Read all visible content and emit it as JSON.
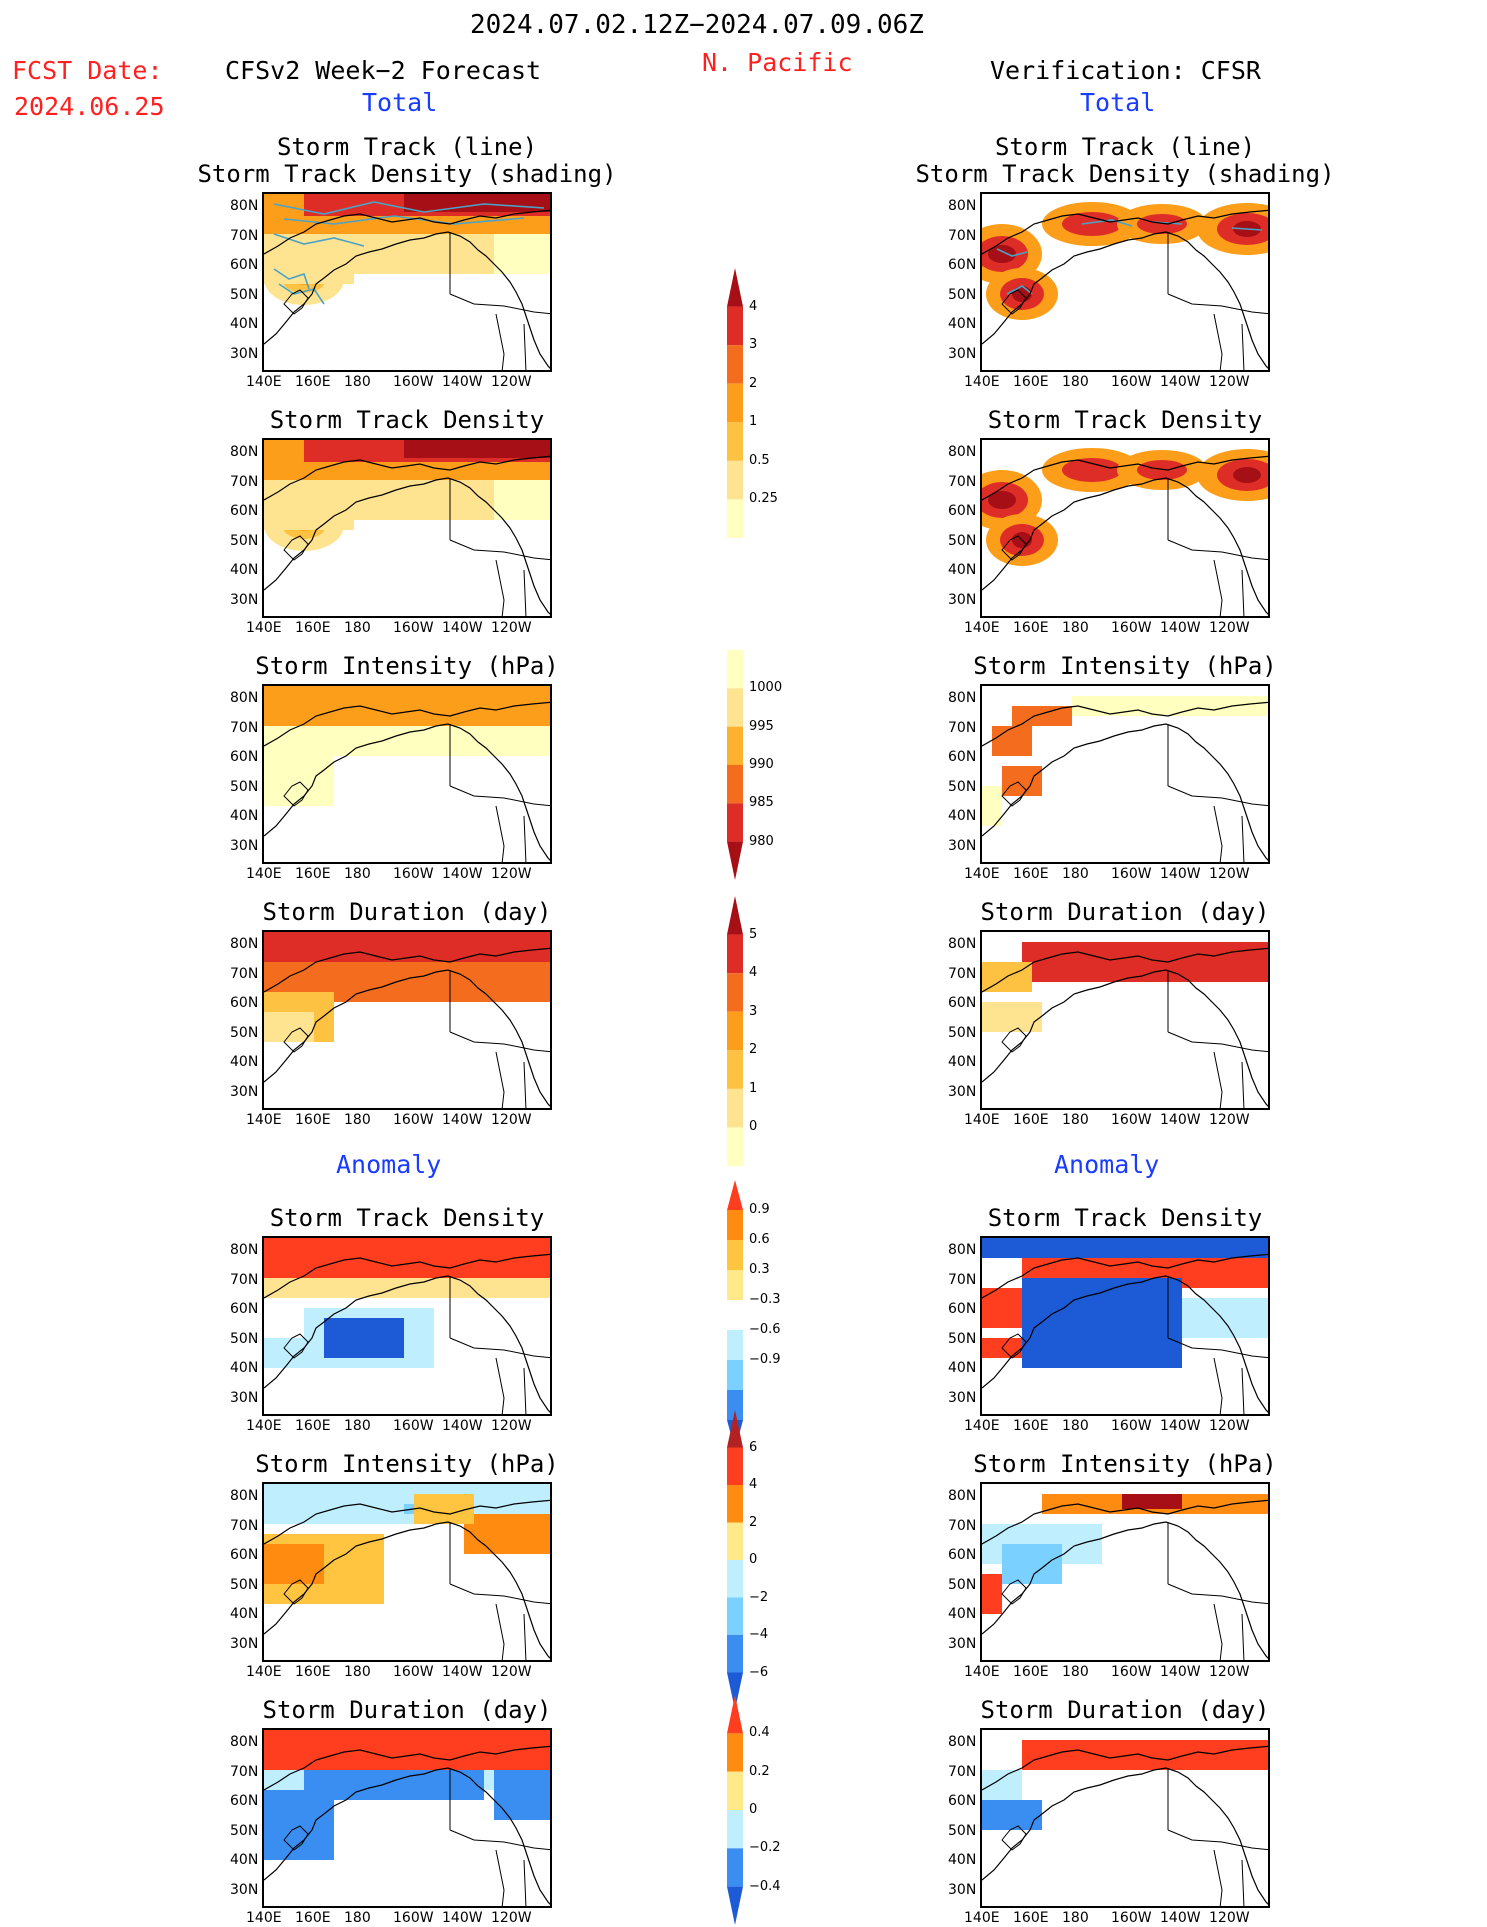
{
  "header": {
    "date_range": "2024.07.02.12Z−2024.07.09.06Z",
    "fcst_label": "FCST Date:",
    "fcst_date": "2024.06.25",
    "forecast_title": "CFSv2 Week−2 Forecast",
    "region": "N. Pacific",
    "verification_title": "Verification: CFSR",
    "total_left": "Total",
    "total_right": "Total",
    "anomaly_left": "Anomaly",
    "anomaly_right": "Anomaly"
  },
  "panels": {
    "storm_track_line1": "Storm Track (line)",
    "storm_track_line2": "Storm Track Density (shading)",
    "density": "Storm Track Density",
    "intensity": "Storm Intensity (hPa)",
    "duration": "Storm Duration (day)"
  },
  "axes": {
    "lat_labels": [
      "80N",
      "70N",
      "60N",
      "50N",
      "40N",
      "30N"
    ],
    "lon_labels": [
      "140E",
      "160E",
      "180",
      "160W",
      "140W",
      "120W"
    ]
  },
  "colorbars": {
    "density_total": {
      "labels": [
        "4",
        "3",
        "2",
        "1",
        "0.5",
        "0.25"
      ],
      "colors": [
        "#a50f15",
        "#de2d26",
        "#f46d1f",
        "#fd9e1a",
        "#fdc241",
        "#fee391",
        "#ffffbf"
      ]
    },
    "intensity_total": {
      "labels": [
        "1000",
        "995",
        "990",
        "985",
        "980"
      ],
      "colors": [
        "#ffffbf",
        "#fee391",
        "#fdb22f",
        "#f46d1f",
        "#de2d26",
        "#a50f15"
      ]
    },
    "duration_total": {
      "labels": [
        "5",
        "4",
        "3",
        "2",
        "1",
        "0"
      ],
      "colors": [
        "#a50f15",
        "#de2d26",
        "#f46d1f",
        "#fd9e1a",
        "#fdc241",
        "#fee391",
        "#ffffbf"
      ]
    },
    "density_anom": {
      "labels": [
        "0.9",
        "0.6",
        "0.3",
        "−0.3",
        "−0.6",
        "−0.9"
      ],
      "colors": [
        "#ff3d1f",
        "#ff8c10",
        "#ffc440",
        "#ffe98a",
        "#ffffff",
        "#bfefff",
        "#7ad0ff",
        "#3a8ef2",
        "#1d5ad6"
      ]
    },
    "intensity_anom": {
      "labels": [
        "6",
        "4",
        "2",
        "0",
        "−2",
        "−4",
        "−6"
      ],
      "colors": [
        "#b22222",
        "#ff3d1f",
        "#ff8c10",
        "#ffe98a",
        "#bfefff",
        "#7ad0ff",
        "#3a8ef2",
        "#1d5ad6"
      ]
    },
    "duration_anom": {
      "labels": [
        "0.4",
        "0.2",
        "0",
        "−0.2",
        "−0.4"
      ],
      "colors": [
        "#ff3d1f",
        "#ff8c10",
        "#ffe98a",
        "#bfefff",
        "#3a8ef2",
        "#1d5ad6"
      ]
    }
  }
}
